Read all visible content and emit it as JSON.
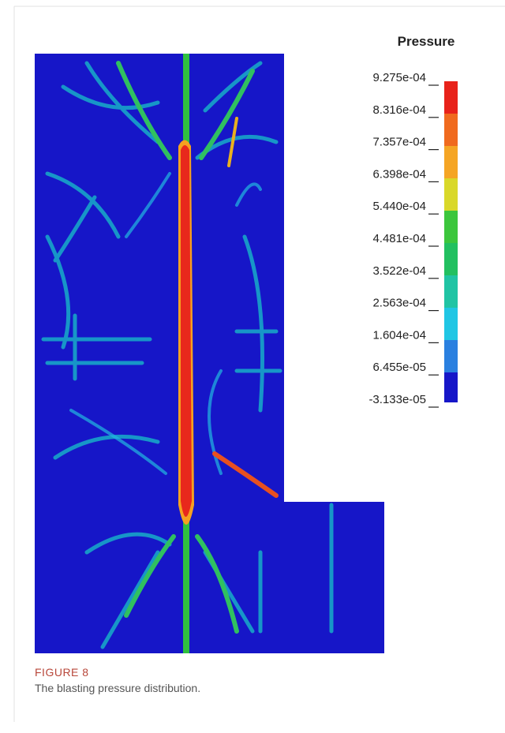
{
  "figure": {
    "legend": {
      "title": "Pressure",
      "labels": [
        "9.275e-04",
        "8.316e-04",
        "7.357e-04",
        "6.398e-04",
        "5.440e-04",
        "4.481e-04",
        "3.522e-04",
        "2.563e-04",
        "1.604e-04",
        "6.455e-05",
        "-3.133e-05"
      ]
    },
    "label": "FIGURE 8",
    "caption": "The blasting pressure distribution."
  }
}
